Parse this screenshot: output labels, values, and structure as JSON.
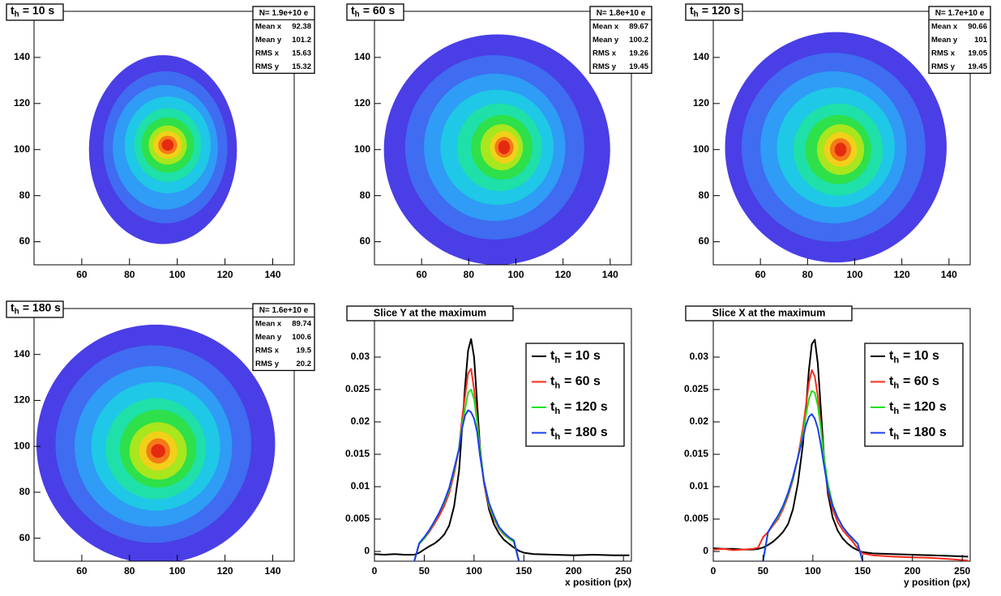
{
  "chart_data": [
    {
      "type": "heatmap",
      "title": {
        "text": "t",
        "subscript": "h",
        "suffix": "= 10 s"
      },
      "stats": {
        "title": "N= 1.9e+10 e",
        "rows": [
          {
            "label": "Mean x",
            "value": 92.38
          },
          {
            "label": "Mean y",
            "value": 101.2
          },
          {
            "label": "RMS x",
            "value": 15.63
          },
          {
            "label": "RMS y",
            "value": 15.32
          }
        ]
      },
      "xlim": [
        40,
        149
      ],
      "ylim": [
        50,
        160
      ],
      "xticks": [
        60,
        80,
        100,
        120,
        140
      ],
      "yticks": [
        60,
        80,
        100,
        120,
        140
      ],
      "colors": [
        "#4a3ee6",
        "#3f6cf0",
        "#2f9cf5",
        "#1fc8e6",
        "#1fe0a8",
        "#2ee04a",
        "#a8e61e",
        "#f2d01a",
        "#f57a18",
        "#e62a10"
      ],
      "contours": [
        [
          94,
          100,
          31,
          41
        ],
        [
          95,
          101,
          26,
          33
        ],
        [
          95,
          101,
          22,
          27
        ],
        [
          96,
          102,
          18,
          21
        ],
        [
          96,
          102,
          14,
          16
        ],
        [
          96,
          102,
          11,
          12
        ],
        [
          96,
          102,
          8,
          8.5
        ],
        [
          96,
          102,
          6,
          6
        ],
        [
          96,
          102,
          4,
          4
        ],
        [
          96,
          102,
          2.5,
          2.5
        ]
      ]
    },
    {
      "type": "heatmap",
      "title": {
        "text": "t",
        "subscript": "h",
        "suffix": "= 60 s"
      },
      "stats": {
        "title": "N= 1.8e+10 e",
        "rows": [
          {
            "label": "Mean x",
            "value": 89.67
          },
          {
            "label": "Mean y",
            "value": 100.2
          },
          {
            "label": "RMS x",
            "value": 19.26
          },
          {
            "label": "RMS y",
            "value": 19.45
          }
        ]
      },
      "xlim": [
        40,
        149
      ],
      "ylim": [
        50,
        160
      ],
      "xticks": [
        60,
        80,
        100,
        120,
        140
      ],
      "yticks": [
        60,
        80,
        100,
        120,
        140
      ],
      "colors": [
        "#4a3ee6",
        "#3f6cf0",
        "#2f9cf5",
        "#1fc8e6",
        "#1fe0a8",
        "#2ee04a",
        "#a8e61e",
        "#f2d01a",
        "#f57a18",
        "#e62a10"
      ],
      "contours": [
        [
          92,
          100,
          48,
          50
        ],
        [
          91,
          101,
          38,
          40
        ],
        [
          91,
          101,
          30,
          32
        ],
        [
          92,
          101,
          24,
          25
        ],
        [
          93,
          101,
          18,
          19
        ],
        [
          94,
          101,
          13,
          14
        ],
        [
          94,
          101,
          9,
          10
        ],
        [
          95,
          101,
          6,
          7
        ],
        [
          95,
          101,
          4,
          4.5
        ],
        [
          95,
          101,
          2.5,
          3
        ]
      ]
    },
    {
      "type": "heatmap",
      "title": {
        "text": "t",
        "subscript": "h",
        "suffix": "= 120 s"
      },
      "stats": {
        "title": "N= 1.7e+10 e",
        "rows": [
          {
            "label": "Mean x",
            "value": 90.66
          },
          {
            "label": "Mean y",
            "value": 101
          },
          {
            "label": "RMS x",
            "value": 19.05
          },
          {
            "label": "RMS y",
            "value": 19.45
          }
        ]
      },
      "xlim": [
        40,
        149
      ],
      "ylim": [
        50,
        160
      ],
      "xticks": [
        60,
        80,
        100,
        120,
        140
      ],
      "yticks": [
        60,
        80,
        100,
        120,
        140
      ],
      "colors": [
        "#4a3ee6",
        "#3f6cf0",
        "#2f9cf5",
        "#1fc8e6",
        "#1fe0a8",
        "#2ee04a",
        "#a8e61e",
        "#f2d01a",
        "#f57a18",
        "#e62a10"
      ],
      "contours": [
        [
          92,
          101,
          47,
          50
        ],
        [
          91,
          101,
          39,
          41
        ],
        [
          91,
          101,
          31,
          33
        ],
        [
          92,
          101,
          25,
          26
        ],
        [
          93,
          100,
          19,
          20
        ],
        [
          93,
          100,
          14,
          15
        ],
        [
          94,
          100,
          10,
          11
        ],
        [
          94,
          100,
          7,
          7.5
        ],
        [
          94,
          100,
          4.5,
          5
        ],
        [
          94,
          100,
          2.5,
          3
        ]
      ]
    },
    {
      "type": "heatmap",
      "title": {
        "text": "t",
        "subscript": "h",
        "suffix": "= 180 s"
      },
      "stats": {
        "title": "N= 1.6e+10 e",
        "rows": [
          {
            "label": "Mean x",
            "value": 89.74
          },
          {
            "label": "Mean y",
            "value": 100.6
          },
          {
            "label": "RMS x",
            "value": 19.5
          },
          {
            "label": "RMS y",
            "value": 20.2
          }
        ]
      },
      "xlim": [
        40,
        149
      ],
      "ylim": [
        50,
        160
      ],
      "xticks": [
        60,
        80,
        100,
        120,
        140
      ],
      "yticks": [
        60,
        80,
        100,
        120,
        140
      ],
      "colors": [
        "#4a3ee6",
        "#3f6cf0",
        "#2f9cf5",
        "#1fc8e6",
        "#1fe0a8",
        "#2ee04a",
        "#a8e61e",
        "#f2d01a",
        "#f57a18",
        "#e62a10"
      ],
      "contours": [
        [
          91,
          101,
          50,
          52
        ],
        [
          90,
          101,
          41,
          43
        ],
        [
          90,
          100,
          33,
          35
        ],
        [
          91,
          100,
          27,
          28
        ],
        [
          91,
          99,
          21,
          22
        ],
        [
          92,
          99,
          16,
          17
        ],
        [
          92,
          98,
          12,
          12.5
        ],
        [
          92,
          98,
          8,
          8.5
        ],
        [
          92,
          98,
          5,
          5.5
        ],
        [
          92,
          98,
          3,
          3
        ]
      ]
    },
    {
      "type": "line",
      "title": "Slice Y at the maximum",
      "x_label": "x position (px)",
      "legend": "upper right",
      "xlim": [
        0,
        258
      ],
      "ylim": [
        -0.0015,
        0.0375
      ],
      "xticks": [
        0,
        50,
        100,
        150,
        200,
        250
      ],
      "yticks": [
        0,
        0.005,
        0.01,
        0.015,
        0.02,
        0.025,
        0.03
      ],
      "x": [
        0,
        10,
        20,
        30,
        40,
        45,
        50,
        55,
        60,
        65,
        70,
        75,
        80,
        85,
        88,
        91,
        94,
        97,
        100,
        103,
        106,
        110,
        115,
        120,
        125,
        130,
        135,
        140,
        145,
        150,
        160,
        180,
        200,
        220,
        240,
        256
      ],
      "series": [
        {
          "name": {
            "text": "t",
            "subscript": "h",
            "suffix": "= 10 s"
          },
          "color": "#000000",
          "values": [
            -0.0004,
            -0.0005,
            -0.0004,
            -0.0005,
            -0.0005,
            -0.0002,
            0.0003,
            0.0008,
            0.0012,
            0.0018,
            0.0026,
            0.004,
            0.007,
            0.0125,
            0.019,
            0.0255,
            0.031,
            0.0328,
            0.03,
            0.023,
            0.016,
            0.0105,
            0.0065,
            0.0042,
            0.0028,
            0.0018,
            0.0012,
            0.0006,
            0.0001,
            -0.0002,
            -0.0004,
            -0.0005,
            -0.0006,
            -0.0005,
            -0.0006,
            -0.0006
          ]
        },
        {
          "name": {
            "text": "t",
            "subscript": "h",
            "suffix": "= 60 s"
          },
          "color": "#ff2a1a",
          "values": [
            null,
            null,
            null,
            null,
            -0.0015,
            0.0012,
            0.002,
            0.003,
            0.0042,
            0.0055,
            0.007,
            0.009,
            0.012,
            0.016,
            0.0205,
            0.024,
            0.0275,
            0.0282,
            0.025,
            0.0205,
            0.0155,
            0.0105,
            0.007,
            0.005,
            0.0035,
            0.0026,
            0.002,
            0.0015,
            -0.0015,
            null,
            null,
            null,
            null,
            null,
            null,
            null
          ]
        },
        {
          "name": {
            "text": "t",
            "subscript": "h",
            "suffix": "= 120 s"
          },
          "color": "#22e01a",
          "values": [
            null,
            null,
            null,
            null,
            -0.0015,
            0.0012,
            0.002,
            0.0032,
            0.0045,
            0.006,
            0.0075,
            0.0095,
            0.0125,
            0.016,
            0.0195,
            0.022,
            0.0245,
            0.025,
            0.0235,
            0.02,
            0.0155,
            0.0108,
            0.0072,
            0.0052,
            0.0036,
            0.0027,
            0.002,
            0.0015,
            -0.0015,
            null,
            null,
            null,
            null,
            null,
            null,
            null
          ]
        },
        {
          "name": {
            "text": "t",
            "subscript": "h",
            "suffix": "= 180 s"
          },
          "color": "#1a3cf0",
          "values": [
            null,
            null,
            null,
            null,
            -0.0015,
            0.0013,
            0.0022,
            0.0033,
            0.0046,
            0.006,
            0.0077,
            0.0098,
            0.0128,
            0.0158,
            0.019,
            0.021,
            0.0218,
            0.0215,
            0.0205,
            0.0185,
            0.0148,
            0.0108,
            0.0075,
            0.0055,
            0.0038,
            0.0029,
            0.0022,
            0.0017,
            -0.0015,
            null,
            null,
            null,
            null,
            null,
            null,
            null
          ]
        }
      ]
    },
    {
      "type": "line",
      "title": "Slice X at the maximum",
      "x_label": "y position (px)",
      "legend": "upper right",
      "xlim": [
        0,
        258
      ],
      "ylim": [
        -0.0015,
        0.0375
      ],
      "xticks": [
        0,
        50,
        100,
        150,
        200,
        250
      ],
      "yticks": [
        0,
        0.005,
        0.01,
        0.015,
        0.02,
        0.025,
        0.03
      ],
      "x": [
        0,
        10,
        20,
        30,
        40,
        45,
        50,
        55,
        60,
        65,
        70,
        75,
        80,
        85,
        90,
        93,
        96,
        99,
        102,
        105,
        108,
        111,
        115,
        120,
        125,
        130,
        135,
        140,
        145,
        150,
        160,
        180,
        200,
        220,
        240,
        256
      ],
      "series": [
        {
          "name": {
            "text": "t",
            "subscript": "h",
            "suffix": "= 10 s"
          },
          "color": "#000000",
          "values": [
            0.0005,
            0.0004,
            0.0004,
            0.0003,
            0.0003,
            0.0004,
            0.0006,
            0.001,
            0.0015,
            0.0022,
            0.003,
            0.0042,
            0.0065,
            0.0105,
            0.0165,
            0.022,
            0.028,
            0.032,
            0.0327,
            0.029,
            0.022,
            0.015,
            0.009,
            0.0052,
            0.0032,
            0.002,
            0.0012,
            0.0006,
            0.0002,
            -0.0001,
            -0.0003,
            -0.0004,
            -0.0005,
            -0.0006,
            -0.0007,
            -0.0008
          ]
        },
        {
          "name": {
            "text": "t",
            "subscript": "h",
            "suffix": "= 60 s"
          },
          "color": "#ff2a1a",
          "values": [
            0.0003,
            0.0004,
            0.0002,
            0.0003,
            0.0004,
            0.0006,
            0.0022,
            0.003,
            0.004,
            0.005,
            0.0065,
            0.0085,
            0.011,
            0.0145,
            0.019,
            0.0225,
            0.026,
            0.028,
            0.027,
            0.024,
            0.0195,
            0.0145,
            0.0095,
            0.0065,
            0.0045,
            0.0033,
            0.0024,
            0.0015,
            0.0005,
            -0.0003,
            -0.0006,
            -0.0008,
            -0.0009,
            -0.001,
            -0.0012,
            -0.0014
          ]
        },
        {
          "name": {
            "text": "t",
            "subscript": "h",
            "suffix": "= 120 s"
          },
          "color": "#22e01a",
          "values": [
            null,
            null,
            null,
            null,
            null,
            null,
            -0.0015,
            0.003,
            0.0042,
            0.0053,
            0.0068,
            0.0088,
            0.0112,
            0.0145,
            0.018,
            0.021,
            0.0235,
            0.0248,
            0.0245,
            0.0225,
            0.019,
            0.0148,
            0.0105,
            0.0072,
            0.0052,
            0.0038,
            0.0028,
            0.0019,
            0.0012,
            -0.0015,
            null,
            null,
            null,
            null,
            null,
            null
          ]
        },
        {
          "name": {
            "text": "t",
            "subscript": "h",
            "suffix": "= 180 s"
          },
          "color": "#1a3cf0",
          "values": [
            null,
            null,
            null,
            null,
            null,
            null,
            -0.0015,
            0.003,
            0.0043,
            0.0055,
            0.007,
            0.009,
            0.0115,
            0.0145,
            0.0175,
            0.0195,
            0.0208,
            0.0212,
            0.0205,
            0.019,
            0.0165,
            0.0135,
            0.0098,
            0.007,
            0.0052,
            0.0038,
            0.0028,
            0.002,
            0.0012,
            -0.0015,
            null,
            null,
            null,
            null,
            null,
            null
          ]
        }
      ]
    }
  ]
}
